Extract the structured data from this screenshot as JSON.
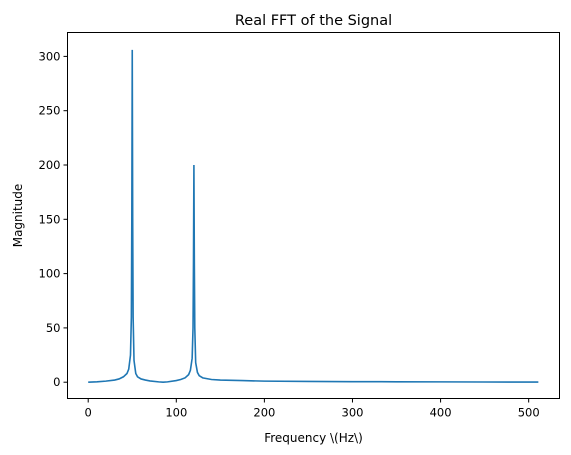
{
  "chart_data": {
    "type": "line",
    "title": "Real FFT of the Signal",
    "xlabel": "Frequency \\(Hz\\)",
    "ylabel": "Magnitude",
    "xlim": [
      -23.5,
      535
    ],
    "ylim": [
      -15,
      322
    ],
    "xticks": [
      0,
      100,
      200,
      300,
      400,
      500
    ],
    "yticks": [
      0,
      50,
      100,
      150,
      200,
      250,
      300
    ],
    "grid": false,
    "series": [
      {
        "color": "#1f77b4",
        "x": [
          0,
          10,
          20,
          30,
          35,
          40,
          44,
          46,
          48,
          49,
          49.5,
          50,
          50.5,
          51,
          52,
          54,
          56,
          60,
          65,
          70,
          80,
          85,
          90,
          100,
          105,
          110,
          114,
          116,
          118,
          119,
          119.5,
          120,
          120.5,
          121,
          122,
          124,
          126,
          130,
          140,
          150,
          175,
          200,
          250,
          300,
          350,
          400,
          450,
          511
        ],
        "y": [
          0,
          0.4,
          1,
          2,
          3,
          5,
          8,
          12,
          25,
          60,
          150,
          306,
          150,
          60,
          20,
          8,
          5,
          3,
          2,
          1.2,
          0.3,
          0,
          0.3,
          1.5,
          2.5,
          4,
          7,
          11,
          22,
          50,
          110,
          200,
          110,
          50,
          18,
          9,
          6,
          4,
          2.5,
          2,
          1.5,
          1,
          0.7,
          0.5,
          0.4,
          0.3,
          0.2,
          0.1
        ]
      }
    ]
  }
}
